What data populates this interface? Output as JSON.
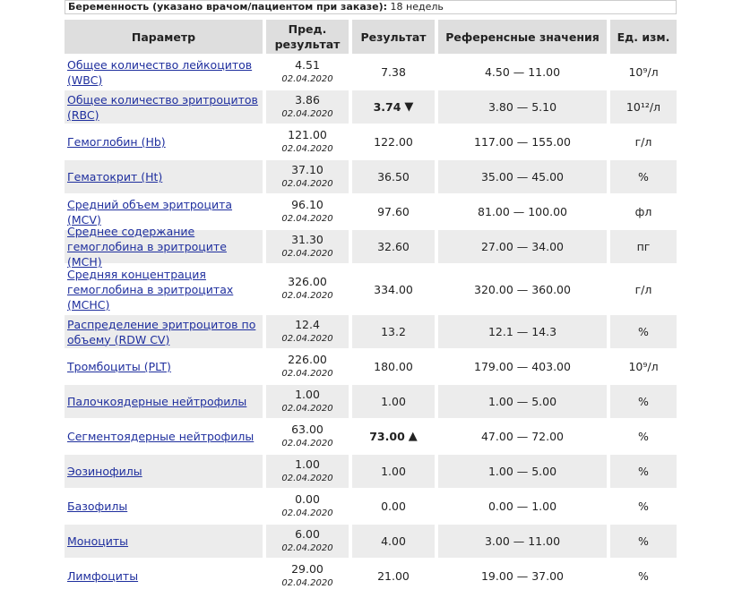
{
  "header": {
    "label": "Беременность (указано врачом/пациентом при заказе):",
    "value": "18 недель"
  },
  "table": {
    "columns": [
      "Параметр",
      "Пред. результат",
      "Результат",
      "Референсные значения",
      "Ед. изм."
    ],
    "rows": [
      {
        "param": "Общее количество лейкоцитов (WBC)",
        "prev": "4.51",
        "prev_date": "02.04.2020",
        "result": "7.38",
        "ref": "4.50 — 11.00",
        "unit": "10⁹/л"
      },
      {
        "param": "Общее количество эритроцитов (RBC)",
        "prev": "3.86",
        "prev_date": "02.04.2020",
        "result": "3.74",
        "flag": "▼",
        "ref": "3.80 — 5.10",
        "unit": "10¹²/л"
      },
      {
        "param": "Гемоглобин (Hb)",
        "prev": "121.00",
        "prev_date": "02.04.2020",
        "result": "122.00",
        "ref": "117.00 — 155.00",
        "unit": "г/л"
      },
      {
        "param": "Гематокрит (Ht)",
        "prev": "37.10",
        "prev_date": "02.04.2020",
        "result": "36.50",
        "ref": "35.00 — 45.00",
        "unit": "%"
      },
      {
        "param": "Средний объем эритроцита (MCV)",
        "prev": "96.10",
        "prev_date": "02.04.2020",
        "result": "97.60",
        "ref": "81.00 — 100.00",
        "unit": "фл"
      },
      {
        "param": "Среднее содержание гемоглобина в эритроците (MCH)",
        "prev": "31.30",
        "prev_date": "02.04.2020",
        "result": "32.60",
        "ref": "27.00 — 34.00",
        "unit": "пг"
      },
      {
        "param": "Средняя концентрация гемоглобина в эритроцитах (MCHC)",
        "prev": "326.00",
        "prev_date": "02.04.2020",
        "result": "334.00",
        "ref": "320.00 — 360.00",
        "unit": "г/л"
      },
      {
        "param": "Распределение эритроцитов по объему (RDW CV)",
        "prev": "12.4",
        "prev_date": "02.04.2020",
        "result": "13.2",
        "ref": "12.1 — 14.3",
        "unit": "%"
      },
      {
        "param": "Тромбоциты (PLT)",
        "prev": "226.00",
        "prev_date": "02.04.2020",
        "result": "180.00",
        "ref": "179.00 — 403.00",
        "unit": "10⁹/л"
      },
      {
        "param": "Палочкоядерные нейтрофилы",
        "prev": "1.00",
        "prev_date": "02.04.2020",
        "result": "1.00",
        "ref": "1.00 — 5.00",
        "unit": "%"
      },
      {
        "param": "Сегментоядерные нейтрофилы",
        "prev": "63.00",
        "prev_date": "02.04.2020",
        "result": "73.00",
        "flag": "▲",
        "ref": "47.00 — 72.00",
        "unit": "%"
      },
      {
        "param": "Эозинофилы",
        "prev": "1.00",
        "prev_date": "02.04.2020",
        "result": "1.00",
        "ref": "1.00 — 5.00",
        "unit": "%"
      },
      {
        "param": "Базофилы",
        "prev": "0.00",
        "prev_date": "02.04.2020",
        "result": "0.00",
        "ref": "0.00 — 1.00",
        "unit": "%"
      },
      {
        "param": "Моноциты",
        "prev": "6.00",
        "prev_date": "02.04.2020",
        "result": "4.00",
        "ref": "3.00 — 11.00",
        "unit": "%"
      },
      {
        "param": "Лимфоциты",
        "prev": "29.00",
        "prev_date": "02.04.2020",
        "result": "21.00",
        "ref": "19.00 — 37.00",
        "unit": "%"
      }
    ]
  }
}
